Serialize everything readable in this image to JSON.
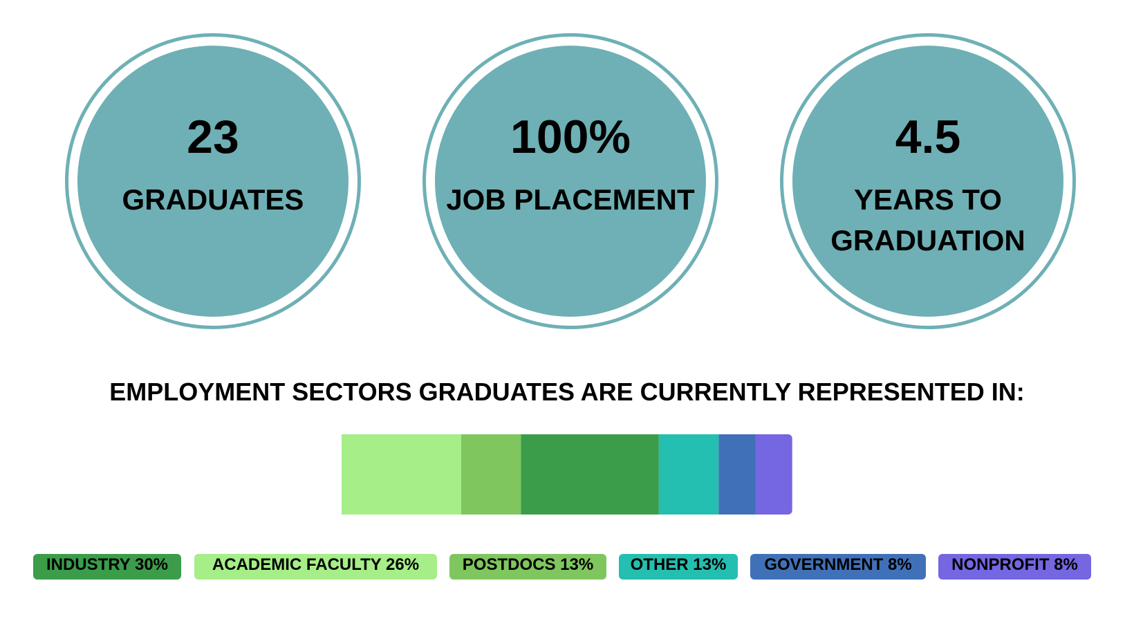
{
  "stats": [
    {
      "value": "23",
      "label": "GRADUATES"
    },
    {
      "value": "100%",
      "label": "JOB PLACEMENT"
    },
    {
      "value": "4.5",
      "label_line1": "YEARS TO",
      "label_line2": "GRADUATION"
    }
  ],
  "colors": {
    "circle": "#6eb0b5"
  },
  "chart_data": {
    "type": "bar",
    "orientation": "horizontal-stacked",
    "title": "EMPLOYMENT SECTORS GRADUATES ARE CURRENTLY REPRESENTED IN:",
    "series": [
      {
        "name": "ACADEMIC FACULTY",
        "value": 26,
        "color": "#a5ee88"
      },
      {
        "name": "POSTDOCS",
        "value": 13,
        "color": "#7fc65f"
      },
      {
        "name": "INDUSTRY",
        "value": 30,
        "color": "#3b9d4a"
      },
      {
        "name": "OTHER",
        "value": 13,
        "color": "#24bfb0"
      },
      {
        "name": "GOVERNMENT",
        "value": 8,
        "color": "#4071b8"
      },
      {
        "name": "NONPROFIT",
        "value": 8,
        "color": "#7566e2"
      }
    ],
    "legend": [
      {
        "text": "INDUSTRY 30%",
        "color": "#3b9d4a"
      },
      {
        "text": "ACADEMIC FACULTY 26%",
        "color": "#a5ee88"
      },
      {
        "text": "POSTDOCS 13%",
        "color": "#7fc65f"
      },
      {
        "text": "OTHER 13%",
        "color": "#24bfb0"
      },
      {
        "text": "GOVERNMENT 8%",
        "color": "#4071b8"
      },
      {
        "text": "NONPROFIT 8%",
        "color": "#7566e2"
      }
    ],
    "legend_placement": "bottom",
    "grid": false
  }
}
